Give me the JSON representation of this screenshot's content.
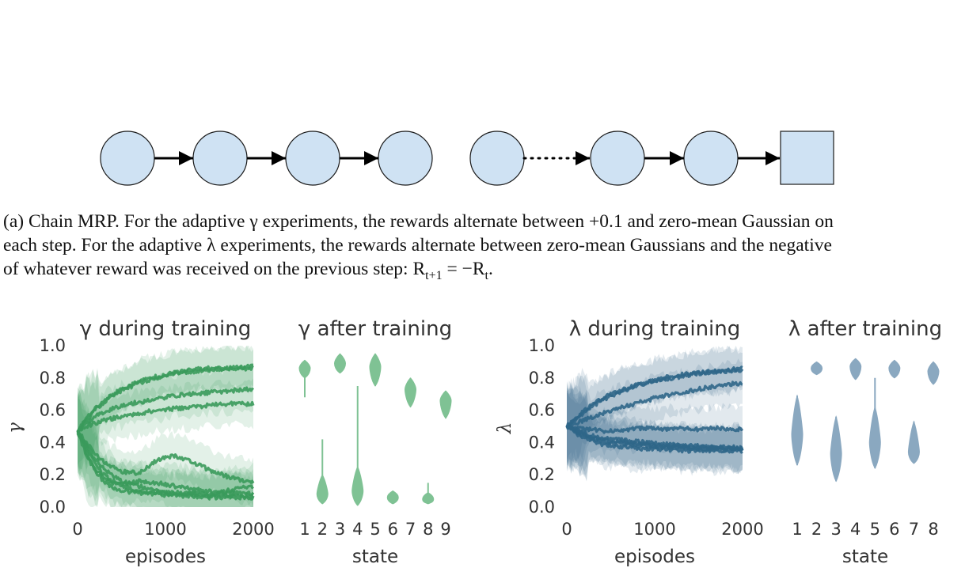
{
  "diagram": {
    "node_count_before_dots": 5,
    "node_count_after_dots": 2,
    "terminal": "square",
    "node_fill": "#cfe2f3",
    "node_stroke": "#1a1a1a",
    "arrow_color": "#000000"
  },
  "caption": {
    "line1": "(a) Chain MRP. For the adaptive γ experiments, the rewards alternate between +0.1 and zero-mean Gaussian on",
    "line2": "each step. For the adaptive λ experiments, the rewards alternate between zero-mean Gaussians and the negative",
    "line3": "of whatever reward was received on the previous step: R",
    "line3_sub1": "t+1",
    "line3_mid": " = −R",
    "line3_sub2": "t",
    "line3_end": "."
  },
  "chart_data": [
    {
      "id": "gamma_training",
      "type": "line",
      "title": "γ during training",
      "xlabel": "episodes",
      "ylabel": "γ",
      "xlim": [
        0,
        2000
      ],
      "ylim": [
        0,
        1
      ],
      "xticks": [
        "0",
        "1000",
        "2000"
      ],
      "yticks": [
        "0.0",
        "0.2",
        "0.4",
        "0.6",
        "0.8",
        "1.0"
      ],
      "grid": false,
      "color": "#3a9a5b",
      "x": [
        0,
        100,
        200,
        300,
        400,
        500,
        700,
        900,
        1100,
        1300,
        1500,
        1700,
        2000
      ],
      "series": [
        {
          "values": [
            0.47,
            0.55,
            0.61,
            0.66,
            0.7,
            0.73,
            0.78,
            0.81,
            0.83,
            0.85,
            0.86,
            0.86,
            0.86
          ]
        },
        {
          "values": [
            0.47,
            0.54,
            0.6,
            0.65,
            0.69,
            0.72,
            0.77,
            0.8,
            0.83,
            0.84,
            0.85,
            0.86,
            0.87
          ]
        },
        {
          "values": [
            0.47,
            0.52,
            0.56,
            0.59,
            0.61,
            0.63,
            0.65,
            0.67,
            0.69,
            0.7,
            0.71,
            0.72,
            0.73
          ]
        },
        {
          "values": [
            0.47,
            0.5,
            0.52,
            0.54,
            0.55,
            0.56,
            0.58,
            0.6,
            0.61,
            0.62,
            0.63,
            0.64,
            0.64
          ]
        },
        {
          "values": [
            0.47,
            0.4,
            0.33,
            0.28,
            0.25,
            0.22,
            0.21,
            0.29,
            0.32,
            0.28,
            0.23,
            0.19,
            0.15
          ]
        },
        {
          "values": [
            0.47,
            0.36,
            0.27,
            0.2,
            0.16,
            0.14,
            0.16,
            0.15,
            0.13,
            0.11,
            0.1,
            0.09,
            0.08
          ]
        },
        {
          "values": [
            0.47,
            0.34,
            0.24,
            0.18,
            0.15,
            0.13,
            0.1,
            0.09,
            0.08,
            0.09,
            0.08,
            0.07,
            0.07
          ]
        },
        {
          "values": [
            0.47,
            0.32,
            0.22,
            0.16,
            0.12,
            0.1,
            0.09,
            0.08,
            0.07,
            0.07,
            0.06,
            0.06,
            0.06
          ]
        },
        {
          "values": [
            0.47,
            0.38,
            0.3,
            0.24,
            0.19,
            0.16,
            0.13,
            0.1,
            0.09,
            0.08,
            0.07,
            0.1,
            0.13
          ]
        }
      ]
    },
    {
      "id": "gamma_after",
      "type": "violin",
      "title": "γ after training",
      "xlabel": "state",
      "ylim": [
        0,
        1
      ],
      "categories": [
        "1",
        "2",
        "3",
        "4",
        "5",
        "6",
        "7",
        "8",
        "9"
      ],
      "color": "#7fc294",
      "violins": [
        {
          "median": 0.86,
          "min": 0.68,
          "max": 0.91,
          "mass_bottom": 0.8,
          "mass_top": 0.91
        },
        {
          "median": 0.08,
          "min": 0.02,
          "max": 0.42,
          "mass_bottom": 0.02,
          "mass_top": 0.2
        },
        {
          "median": 0.89,
          "min": 0.83,
          "max": 0.95,
          "mass_bottom": 0.83,
          "mass_top": 0.95
        },
        {
          "median": 0.1,
          "min": 0.01,
          "max": 0.75,
          "mass_bottom": 0.01,
          "mass_top": 0.25
        },
        {
          "median": 0.87,
          "min": 0.75,
          "max": 0.95,
          "mass_bottom": 0.75,
          "mass_top": 0.95
        },
        {
          "median": 0.06,
          "min": 0.02,
          "max": 0.1,
          "mass_bottom": 0.02,
          "mass_top": 0.1
        },
        {
          "median": 0.73,
          "min": 0.62,
          "max": 0.8,
          "mass_bottom": 0.62,
          "mass_top": 0.8
        },
        {
          "median": 0.05,
          "min": 0.02,
          "max": 0.15,
          "mass_bottom": 0.02,
          "mass_top": 0.09
        },
        {
          "median": 0.66,
          "min": 0.55,
          "max": 0.72,
          "mass_bottom": 0.55,
          "mass_top": 0.72
        }
      ]
    },
    {
      "id": "lambda_training",
      "type": "line",
      "title": "λ during training",
      "xlabel": "episodes",
      "ylabel": "λ",
      "xlim": [
        0,
        2000
      ],
      "ylim": [
        0,
        1
      ],
      "xticks": [
        "0",
        "1000",
        "2000"
      ],
      "yticks": [
        "0.0",
        "0.2",
        "0.4",
        "0.6",
        "0.8",
        "1.0"
      ],
      "grid": false,
      "color": "#2f6688",
      "x": [
        0,
        100,
        200,
        300,
        400,
        500,
        700,
        900,
        1100,
        1300,
        1500,
        1700,
        2000
      ],
      "series": [
        {
          "values": [
            0.5,
            0.55,
            0.6,
            0.64,
            0.67,
            0.7,
            0.74,
            0.77,
            0.8,
            0.82,
            0.83,
            0.84,
            0.86
          ]
        },
        {
          "values": [
            0.5,
            0.54,
            0.59,
            0.63,
            0.66,
            0.69,
            0.73,
            0.77,
            0.79,
            0.81,
            0.83,
            0.84,
            0.85
          ]
        },
        {
          "values": [
            0.5,
            0.52,
            0.54,
            0.56,
            0.58,
            0.6,
            0.63,
            0.66,
            0.69,
            0.71,
            0.73,
            0.75,
            0.77
          ]
        },
        {
          "values": [
            0.5,
            0.49,
            0.48,
            0.48,
            0.47,
            0.47,
            0.48,
            0.49,
            0.48,
            0.49,
            0.48,
            0.49,
            0.48
          ]
        },
        {
          "values": [
            0.5,
            0.47,
            0.45,
            0.43,
            0.42,
            0.41,
            0.4,
            0.39,
            0.38,
            0.38,
            0.37,
            0.37,
            0.36
          ]
        },
        {
          "values": [
            0.5,
            0.47,
            0.44,
            0.42,
            0.41,
            0.4,
            0.39,
            0.38,
            0.37,
            0.37,
            0.36,
            0.36,
            0.36
          ]
        },
        {
          "values": [
            0.5,
            0.48,
            0.46,
            0.44,
            0.43,
            0.42,
            0.41,
            0.4,
            0.39,
            0.38,
            0.38,
            0.37,
            0.37
          ]
        },
        {
          "values": [
            0.5,
            0.46,
            0.43,
            0.41,
            0.39,
            0.38,
            0.37,
            0.36,
            0.36,
            0.35,
            0.35,
            0.35,
            0.35
          ]
        }
      ]
    },
    {
      "id": "lambda_after",
      "type": "violin",
      "title": "λ after training",
      "xlabel": "state",
      "ylim": [
        0,
        1
      ],
      "categories": [
        "1",
        "2",
        "3",
        "4",
        "5",
        "6",
        "7",
        "8"
      ],
      "color": "#8aa8c0",
      "violins": [
        {
          "median": 0.45,
          "min": 0.26,
          "max": 0.69,
          "mass_bottom": 0.26,
          "mass_top": 0.69
        },
        {
          "median": 0.86,
          "min": 0.82,
          "max": 0.9,
          "mass_bottom": 0.82,
          "mass_top": 0.9
        },
        {
          "median": 0.33,
          "min": 0.16,
          "max": 0.56,
          "mass_bottom": 0.16,
          "mass_top": 0.56
        },
        {
          "median": 0.87,
          "min": 0.79,
          "max": 0.92,
          "mass_bottom": 0.79,
          "mass_top": 0.92
        },
        {
          "median": 0.4,
          "min": 0.24,
          "max": 0.8,
          "mass_bottom": 0.24,
          "mass_top": 0.62
        },
        {
          "median": 0.86,
          "min": 0.8,
          "max": 0.91,
          "mass_bottom": 0.8,
          "mass_top": 0.91
        },
        {
          "median": 0.34,
          "min": 0.27,
          "max": 0.53,
          "mass_bottom": 0.27,
          "mass_top": 0.53
        },
        {
          "median": 0.84,
          "min": 0.76,
          "max": 0.9,
          "mass_bottom": 0.76,
          "mass_top": 0.9
        }
      ]
    }
  ]
}
